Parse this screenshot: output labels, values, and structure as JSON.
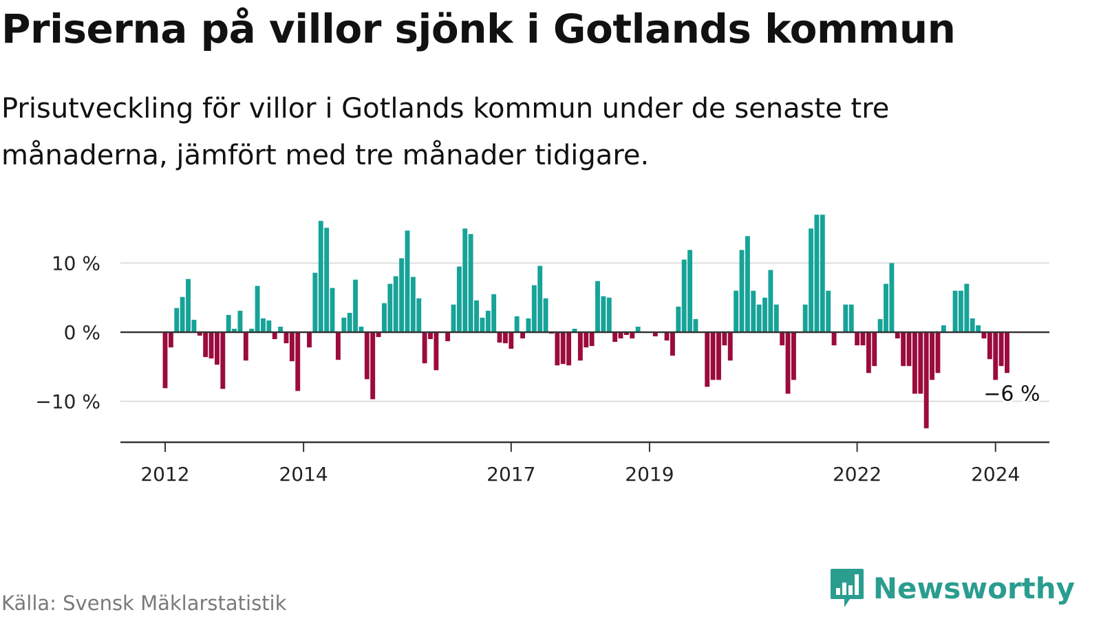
{
  "header": {
    "title": "Priserna på villor sjönk i Gotlands kommun",
    "subtitle": "Prisutveckling för villor i Gotlands kommun under de senaste tre månaderna, jämfört med tre månader tidigare."
  },
  "footer": {
    "source": "Källa: Svensk Mäklarstatistik",
    "brand": "Newsworthy"
  },
  "colors": {
    "positive": "#17a398",
    "negative": "#9b0b3d",
    "grid": "#dddddd",
    "axis": "#333333",
    "brand": "#2a9d8f"
  },
  "icons": {
    "brand_logo": "speech-bubble-bar-chart-icon"
  },
  "chart_data": {
    "type": "bar",
    "ylim": [
      -16,
      17
    ],
    "y_ticks": [
      {
        "value": 10,
        "label": "10 %"
      },
      {
        "value": 0,
        "label": "0 %"
      },
      {
        "value": -10,
        "label": "−10 %"
      }
    ],
    "x_ticks": [
      {
        "index": 0,
        "label": "2012"
      },
      {
        "index": 24,
        "label": "2014"
      },
      {
        "index": 60,
        "label": "2017"
      },
      {
        "index": 84,
        "label": "2019"
      },
      {
        "index": 120,
        "label": "2022"
      },
      {
        "index": 144,
        "label": "2024"
      }
    ],
    "start_month": "2012-01",
    "end_month": "2024-03",
    "values": [
      -8.1,
      -2.2,
      3.5,
      5.1,
      7.7,
      1.8,
      -0.5,
      -3.6,
      -3.8,
      -4.7,
      -8.2,
      2.5,
      0.5,
      3.1,
      -4.1,
      0.5,
      6.7,
      2.0,
      1.7,
      -1.0,
      0.8,
      -1.6,
      -4.2,
      -8.5,
      0.0,
      -2.2,
      8.6,
      16.1,
      15.1,
      6.4,
      -4.0,
      2.1,
      2.8,
      7.6,
      0.8,
      -6.8,
      -9.7,
      -0.7,
      4.2,
      7.0,
      8.1,
      10.7,
      14.7,
      8.0,
      4.9,
      -4.5,
      -1.0,
      -5.5,
      0.0,
      -1.3,
      4.0,
      9.5,
      15.0,
      14.2,
      4.6,
      2.1,
      3.1,
      5.5,
      -1.5,
      -1.6,
      -2.4,
      2.3,
      -0.9,
      2.0,
      6.8,
      9.6,
      4.9,
      -0.2,
      -4.8,
      -4.6,
      -4.8,
      0.5,
      -4.1,
      -2.2,
      -2.0,
      7.4,
      5.2,
      5.0,
      -1.4,
      -0.9,
      -0.4,
      -0.9,
      0.8,
      0.0,
      0.0,
      -0.6,
      0.0,
      -1.2,
      -3.4,
      3.7,
      10.5,
      11.9,
      1.9,
      0.0,
      -7.9,
      -6.9,
      -6.9,
      -1.9,
      -4.1,
      6.0,
      11.9,
      13.9,
      6.0,
      4.0,
      5.0,
      9.0,
      4.0,
      -1.9,
      -8.9,
      -6.9,
      0.0,
      4.0,
      15.0,
      17.0,
      17.0,
      6.0,
      -1.9,
      0.0,
      4.0,
      4.0,
      -1.9,
      -1.9,
      -5.9,
      -4.9,
      1.9,
      7.0,
      10.0,
      -0.9,
      -4.9,
      -4.9,
      -8.9,
      -8.9,
      -13.9,
      -6.9,
      -5.9,
      1.0,
      0.0,
      6.0,
      6.0,
      7.0,
      2.0,
      1.0,
      -0.9,
      -3.9,
      -6.9,
      -4.9,
      -5.9
    ],
    "value_label": "−6 %"
  }
}
